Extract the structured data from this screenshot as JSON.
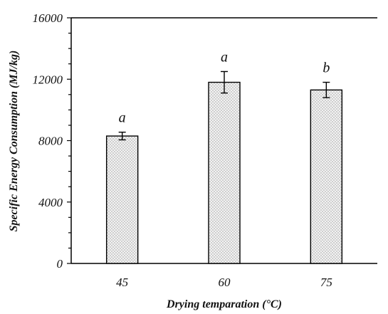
{
  "chart_data": {
    "type": "bar",
    "categories": [
      "45",
      "60",
      "75"
    ],
    "values": [
      8300,
      11800,
      11300
    ],
    "error": [
      250,
      700,
      500
    ],
    "significance": [
      "a",
      "a",
      "b"
    ],
    "xlabel": "Drying temparation (°C)",
    "ylabel": "Specific Energy Consumption (MJ/kg)",
    "ylim": [
      0,
      16000
    ],
    "yticks": [
      "0",
      "4000",
      "8000",
      "12000",
      "16000"
    ],
    "grid": false,
    "bar_fill": "dotted light gray"
  }
}
